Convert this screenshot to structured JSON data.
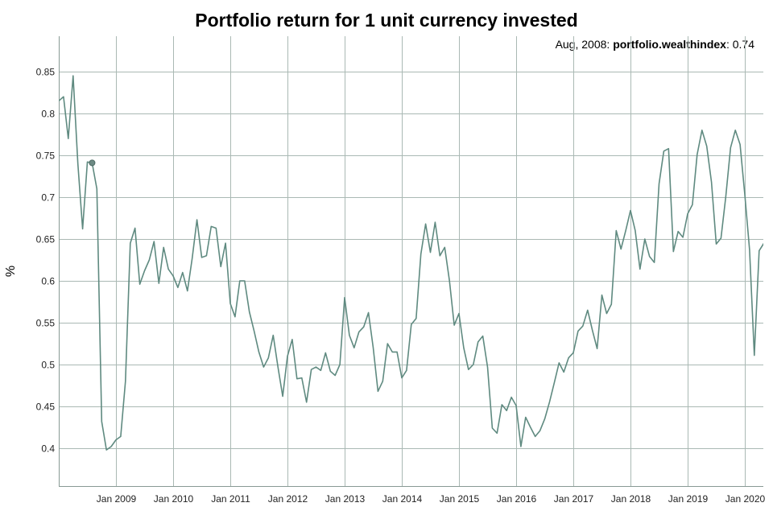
{
  "chart_data": {
    "type": "line",
    "title": "Portfolio return for 1 unit currency invested",
    "ylabel": "%",
    "xlabel": "",
    "x_axis": {
      "start": "2008-01",
      "end": "2020-03",
      "tick_labels": [
        "Jan 2009",
        "Jan 2010",
        "Jan 2011",
        "Jan 2012",
        "Jan 2013",
        "Jan 2014",
        "Jan 2015",
        "Jan 2016",
        "Jan 2017",
        "Jan 2018",
        "Jan 2019",
        "Jan 2020"
      ]
    },
    "y_axis": {
      "ylim": [
        0.35,
        0.89
      ],
      "ticks": [
        0.4,
        0.45,
        0.5,
        0.55,
        0.6,
        0.65,
        0.7,
        0.75,
        0.8,
        0.85
      ],
      "tick_labels": [
        "0.4",
        "0.45",
        "0.5",
        "0.55",
        "0.6",
        "0.65",
        "0.7",
        "0.75",
        "0.8",
        "0.85"
      ]
    },
    "grid": true,
    "line_color": "#5f8a80",
    "series": [
      {
        "name": "portfolio.wealthindex",
        "points": [
          [
            "2008-01",
            0.815
          ],
          [
            "2008-02",
            0.82
          ],
          [
            "2008-03",
            0.77
          ],
          [
            "2008-04",
            0.845
          ],
          [
            "2008-05",
            0.74
          ],
          [
            "2008-06",
            0.662
          ],
          [
            "2008-07",
            0.742
          ],
          [
            "2008-08",
            0.741
          ],
          [
            "2008-09",
            0.71
          ],
          [
            "2008-10",
            0.432
          ],
          [
            "2008-11",
            0.398
          ],
          [
            "2008-12",
            0.402
          ],
          [
            "2009-01",
            0.41
          ],
          [
            "2009-02",
            0.414
          ],
          [
            "2009-03",
            0.48
          ],
          [
            "2009-04",
            0.645
          ],
          [
            "2009-05",
            0.663
          ],
          [
            "2009-06",
            0.596
          ],
          [
            "2009-07",
            0.612
          ],
          [
            "2009-08",
            0.625
          ],
          [
            "2009-09",
            0.647
          ],
          [
            "2009-10",
            0.597
          ],
          [
            "2009-11",
            0.64
          ],
          [
            "2009-12",
            0.614
          ],
          [
            "2010-01",
            0.606
          ],
          [
            "2010-02",
            0.592
          ],
          [
            "2010-03",
            0.61
          ],
          [
            "2010-04",
            0.588
          ],
          [
            "2010-05",
            0.627
          ],
          [
            "2010-06",
            0.673
          ],
          [
            "2010-07",
            0.628
          ],
          [
            "2010-08",
            0.63
          ],
          [
            "2010-09",
            0.665
          ],
          [
            "2010-10",
            0.663
          ],
          [
            "2010-11",
            0.617
          ],
          [
            "2010-12",
            0.645
          ],
          [
            "2011-01",
            0.573
          ],
          [
            "2011-02",
            0.557
          ],
          [
            "2011-03",
            0.6
          ],
          [
            "2011-04",
            0.6
          ],
          [
            "2011-05",
            0.563
          ],
          [
            "2011-06",
            0.54
          ],
          [
            "2011-07",
            0.515
          ],
          [
            "2011-08",
            0.497
          ],
          [
            "2011-09",
            0.508
          ],
          [
            "2011-10",
            0.535
          ],
          [
            "2011-11",
            0.497
          ],
          [
            "2011-12",
            0.462
          ],
          [
            "2012-01",
            0.51
          ],
          [
            "2012-02",
            0.53
          ],
          [
            "2012-03",
            0.483
          ],
          [
            "2012-04",
            0.484
          ],
          [
            "2012-05",
            0.455
          ],
          [
            "2012-06",
            0.494
          ],
          [
            "2012-07",
            0.497
          ],
          [
            "2012-08",
            0.493
          ],
          [
            "2012-09",
            0.514
          ],
          [
            "2012-10",
            0.492
          ],
          [
            "2012-11",
            0.487
          ],
          [
            "2012-12",
            0.5
          ],
          [
            "2013-01",
            0.58
          ],
          [
            "2013-02",
            0.535
          ],
          [
            "2013-03",
            0.52
          ],
          [
            "2013-04",
            0.539
          ],
          [
            "2013-05",
            0.545
          ],
          [
            "2013-06",
            0.562
          ],
          [
            "2013-07",
            0.52
          ],
          [
            "2013-08",
            0.468
          ],
          [
            "2013-09",
            0.48
          ],
          [
            "2013-10",
            0.525
          ],
          [
            "2013-11",
            0.515
          ],
          [
            "2013-12",
            0.515
          ],
          [
            "2014-01",
            0.484
          ],
          [
            "2014-02",
            0.493
          ],
          [
            "2014-03",
            0.548
          ],
          [
            "2014-04",
            0.555
          ],
          [
            "2014-05",
            0.632
          ],
          [
            "2014-06",
            0.668
          ],
          [
            "2014-07",
            0.634
          ],
          [
            "2014-08",
            0.67
          ],
          [
            "2014-09",
            0.63
          ],
          [
            "2014-10",
            0.64
          ],
          [
            "2014-11",
            0.6
          ],
          [
            "2014-12",
            0.547
          ],
          [
            "2015-01",
            0.561
          ],
          [
            "2015-02",
            0.52
          ],
          [
            "2015-03",
            0.494
          ],
          [
            "2015-04",
            0.5
          ],
          [
            "2015-05",
            0.527
          ],
          [
            "2015-06",
            0.534
          ],
          [
            "2015-07",
            0.497
          ],
          [
            "2015-08",
            0.424
          ],
          [
            "2015-09",
            0.418
          ],
          [
            "2015-10",
            0.452
          ],
          [
            "2015-11",
            0.445
          ],
          [
            "2015-12",
            0.461
          ],
          [
            "2016-01",
            0.451
          ],
          [
            "2016-02",
            0.402
          ],
          [
            "2016-03",
            0.437
          ],
          [
            "2016-04",
            0.425
          ],
          [
            "2016-05",
            0.414
          ],
          [
            "2016-06",
            0.421
          ],
          [
            "2016-07",
            0.435
          ],
          [
            "2016-08",
            0.455
          ],
          [
            "2016-09",
            0.478
          ],
          [
            "2016-10",
            0.502
          ],
          [
            "2016-11",
            0.491
          ],
          [
            "2016-12",
            0.508
          ],
          [
            "2017-01",
            0.514
          ],
          [
            "2017-02",
            0.54
          ],
          [
            "2017-03",
            0.546
          ],
          [
            "2017-04",
            0.565
          ],
          [
            "2017-05",
            0.541
          ],
          [
            "2017-06",
            0.519
          ],
          [
            "2017-07",
            0.583
          ],
          [
            "2017-08",
            0.561
          ],
          [
            "2017-09",
            0.572
          ],
          [
            "2017-10",
            0.66
          ],
          [
            "2017-11",
            0.638
          ],
          [
            "2017-12",
            0.66
          ],
          [
            "2018-01",
            0.684
          ],
          [
            "2018-02",
            0.66
          ],
          [
            "2018-03",
            0.614
          ],
          [
            "2018-04",
            0.65
          ],
          [
            "2018-05",
            0.629
          ],
          [
            "2018-06",
            0.622
          ],
          [
            "2018-07",
            0.716
          ],
          [
            "2018-08",
            0.755
          ],
          [
            "2018-09",
            0.758
          ],
          [
            "2018-10",
            0.635
          ],
          [
            "2018-11",
            0.659
          ],
          [
            "2018-12",
            0.652
          ],
          [
            "2019-01",
            0.68
          ],
          [
            "2019-02",
            0.691
          ],
          [
            "2019-03",
            0.751
          ],
          [
            "2019-04",
            0.78
          ],
          [
            "2019-05",
            0.761
          ],
          [
            "2019-06",
            0.718
          ],
          [
            "2019-07",
            0.644
          ],
          [
            "2019-08",
            0.651
          ],
          [
            "2019-09",
            0.7
          ],
          [
            "2019-10",
            0.759
          ],
          [
            "2019-11",
            0.78
          ],
          [
            "2019-12",
            0.763
          ],
          [
            "2020-01",
            0.703
          ],
          [
            "2020-02",
            0.637
          ],
          [
            "2020-03",
            0.511
          ],
          [
            "2020-04",
            0.636
          ],
          [
            "2020-05",
            0.645
          ],
          [
            "2020-06",
            0.668
          ]
        ]
      }
    ],
    "hover": {
      "date_label": "Aug, 2008",
      "series_label": "portfolio.wealthindex",
      "value_label": "0.74",
      "point": [
        "2008-08",
        0.741
      ]
    }
  }
}
